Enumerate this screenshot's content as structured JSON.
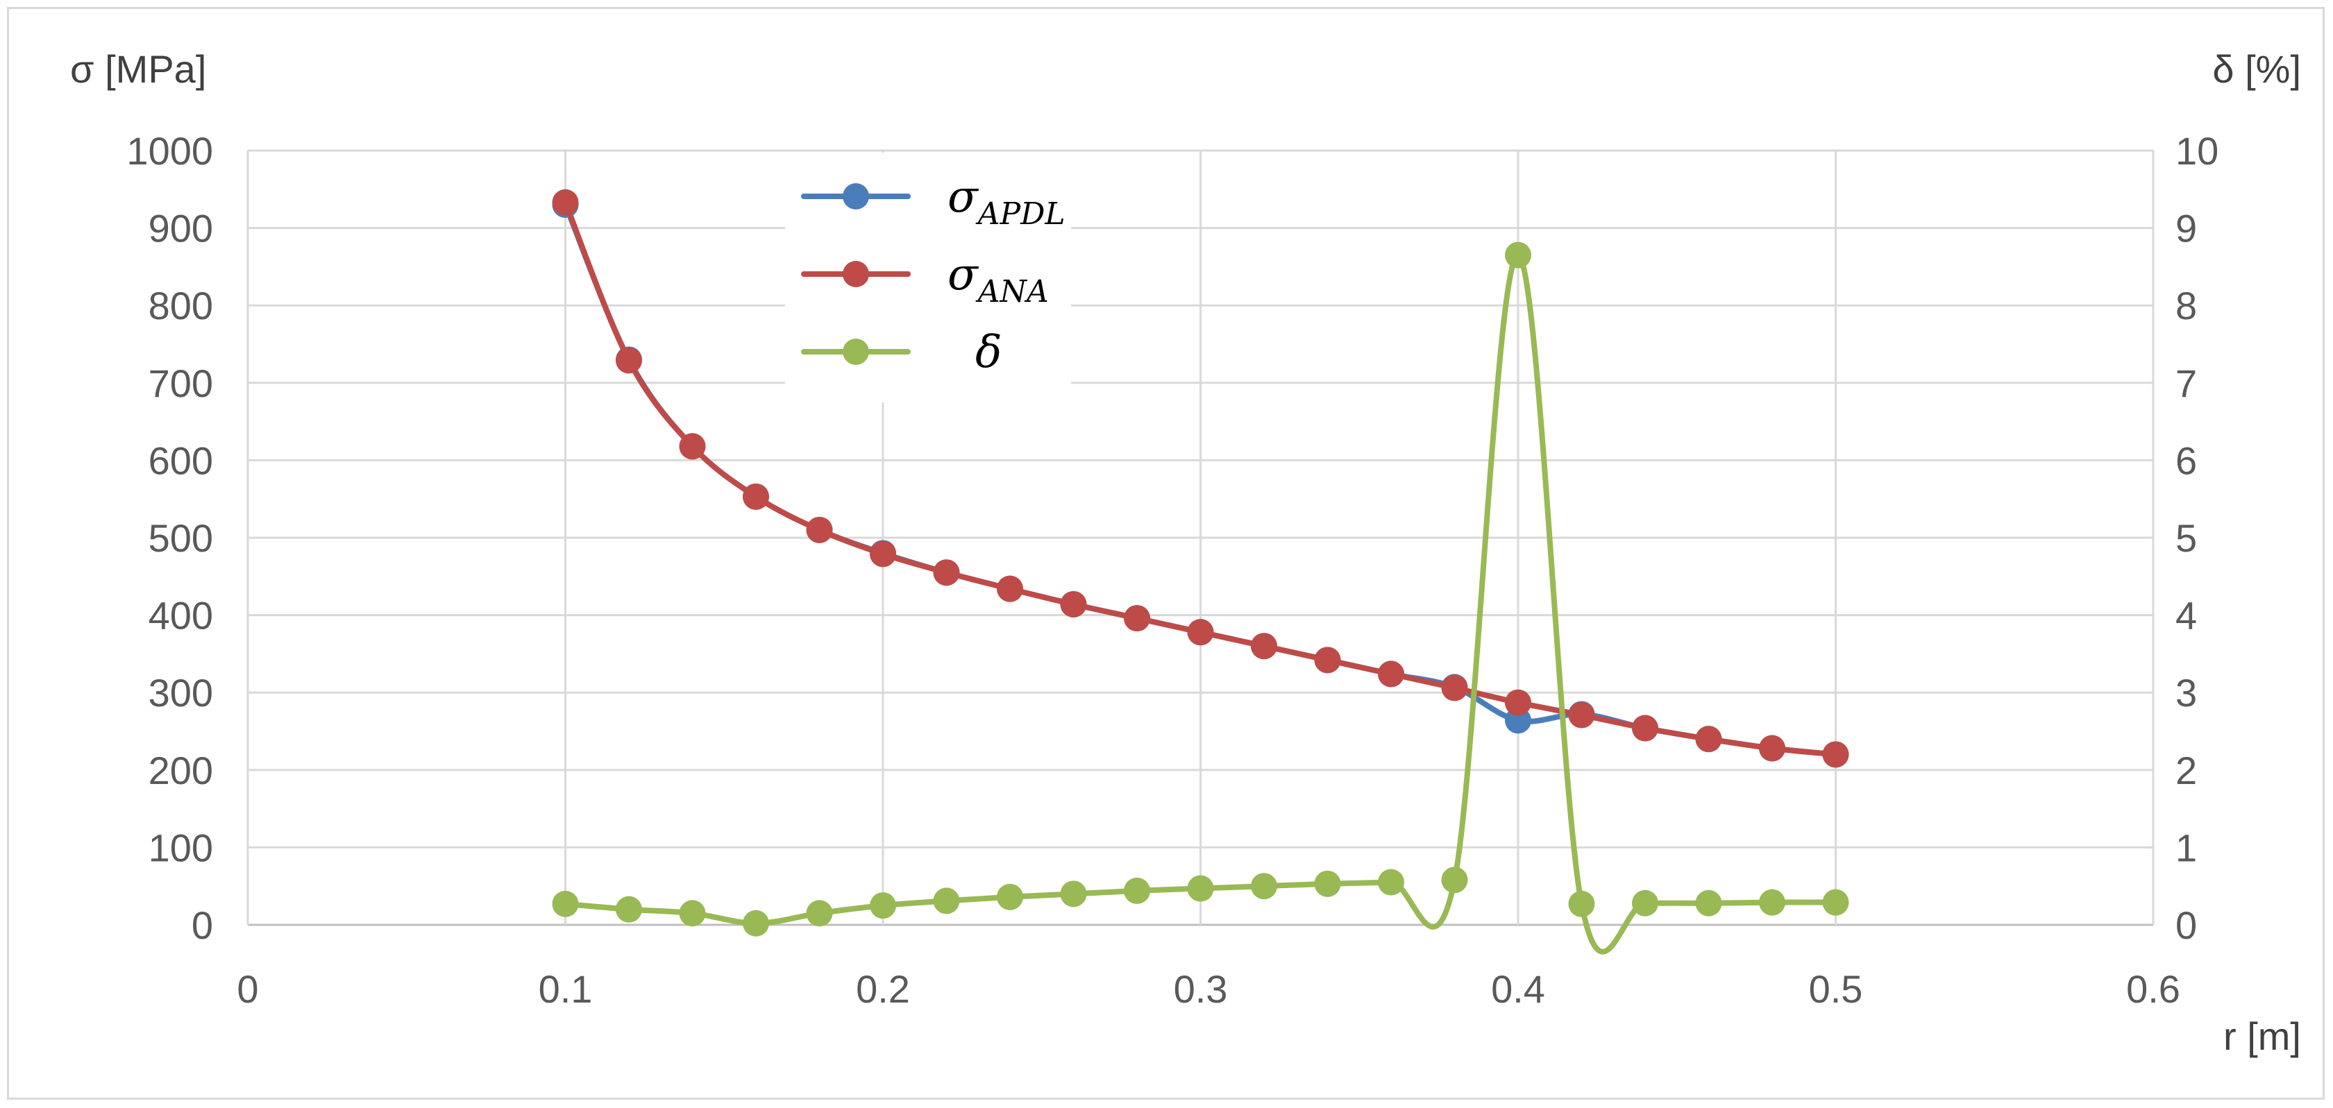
{
  "chart_data": {
    "type": "line",
    "title": "",
    "xlabel": "r [m]",
    "ylabel_left": "σ [MPa]",
    "ylabel_right": "δ [%]",
    "xlim": [
      0,
      0.6
    ],
    "xticks": [
      "0",
      "0.1",
      "0.2",
      "0.3",
      "0.4",
      "0.5",
      "0.6"
    ],
    "ylim_left": [
      0,
      1000
    ],
    "yticks_left": [
      "0",
      "100",
      "200",
      "300",
      "400",
      "500",
      "600",
      "700",
      "800",
      "900",
      "1000"
    ],
    "ylim_right": [
      0,
      10
    ],
    "yticks_right": [
      "0",
      "1",
      "2",
      "3",
      "4",
      "5",
      "6",
      "7",
      "8",
      "9",
      "10"
    ],
    "grid": true,
    "legend_position": "top-center",
    "x": [
      0.1,
      0.12,
      0.14,
      0.16,
      0.18,
      0.2,
      0.22,
      0.24,
      0.26,
      0.28,
      0.3,
      0.32,
      0.34,
      0.36,
      0.38,
      0.4,
      0.42,
      0.44,
      0.46,
      0.48,
      0.5
    ],
    "series": [
      {
        "name": "σ_APDL",
        "base": "σ",
        "sub": "APDL",
        "axis": "left",
        "color": "#4a7ebb",
        "values": [
          930,
          730,
          618,
          553,
          510,
          480,
          455,
          434,
          414,
          396,
          378,
          360,
          342,
          324,
          307,
          264,
          272,
          254,
          240,
          228,
          220
        ]
      },
      {
        "name": "σ_ANA",
        "base": "σ",
        "sub": "ANA",
        "axis": "left",
        "color": "#be4b48",
        "values": [
          933,
          729,
          618,
          553,
          510,
          479,
          455,
          434,
          414,
          396,
          378,
          360,
          342,
          324,
          306,
          287,
          271,
          254,
          240,
          228,
          220
        ]
      },
      {
        "name": "δ",
        "base": "δ",
        "sub": "",
        "axis": "right",
        "color": "#98b954",
        "values": [
          0.27,
          0.2,
          0.15,
          0.02,
          0.15,
          0.25,
          0.31,
          0.36,
          0.4,
          0.44,
          0.47,
          0.5,
          0.53,
          0.55,
          0.58,
          8.65,
          0.27,
          0.28,
          0.28,
          0.29,
          0.29
        ]
      }
    ]
  }
}
